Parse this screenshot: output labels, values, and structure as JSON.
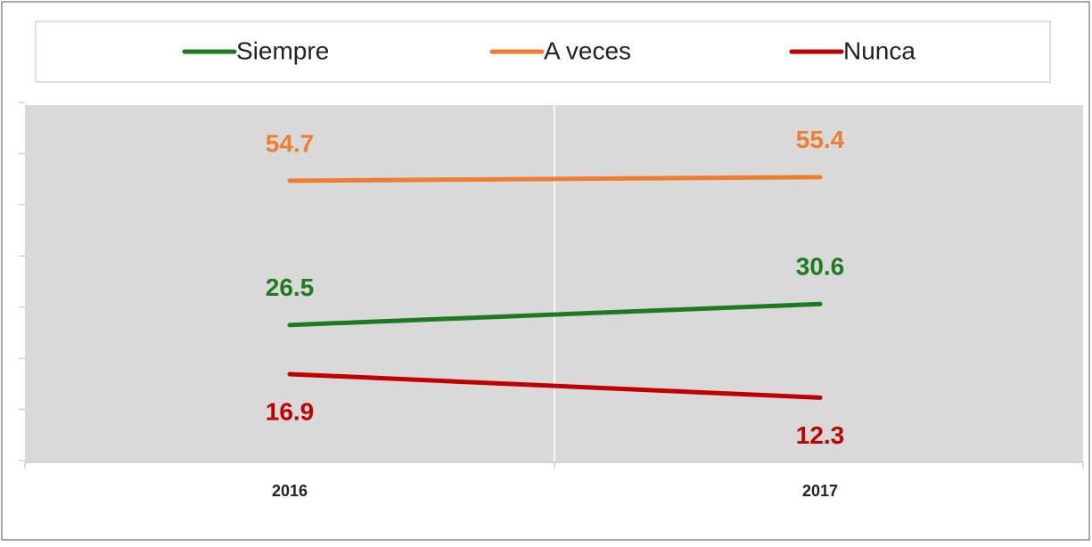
{
  "chart_data": {
    "type": "line",
    "categories": [
      "2016",
      "2017"
    ],
    "series": [
      {
        "name": "Siempre",
        "color": "#1e7a1e",
        "values": [
          26.5,
          30.6
        ]
      },
      {
        "name": "A veces",
        "color": "#ed7d31",
        "values": [
          54.7,
          55.4
        ]
      },
      {
        "name": "Nunca",
        "color": "#c00000",
        "values": [
          16.9,
          12.3
        ]
      }
    ],
    "ylim": [
      0,
      70
    ],
    "yticks": [
      0,
      10,
      20,
      30,
      40,
      50,
      60,
      70
    ],
    "legend": "top"
  }
}
